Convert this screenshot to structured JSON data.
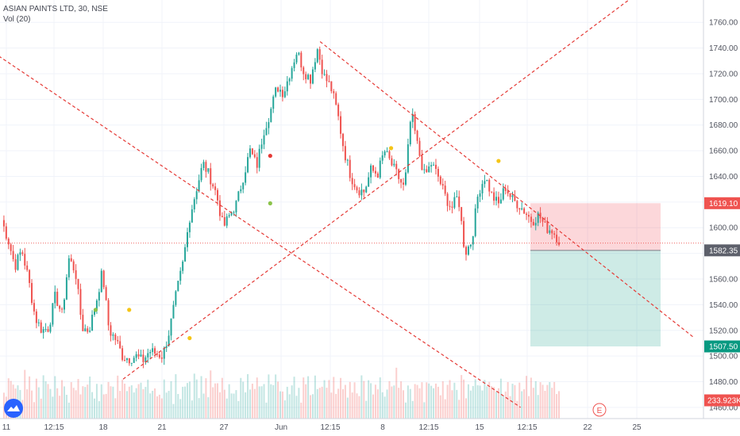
{
  "legend": {
    "symbol": "ASIAN PAINTS LTD, 30, NSE",
    "volume": "Vol (20)"
  },
  "chart_data": {
    "type": "candlestick",
    "ylim": [
      1455,
      1770
    ],
    "y_ticks": [
      1460,
      1480,
      1500,
      1520,
      1540,
      1560,
      1580,
      1600,
      1620,
      1640,
      1660,
      1680,
      1700,
      1720,
      1740,
      1760
    ],
    "y_tick_labels": [
      "1460.00",
      "1480.00",
      "1500.00",
      "1520.00",
      "1540.00",
      "1560.00",
      "1580.00",
      "1600.00",
      "1620.00",
      "1640.00",
      "1660.00",
      "1680.00",
      "1700.00",
      "1720.00",
      "1740.00",
      "1760.00"
    ],
    "x_labels": [
      "11",
      "12:15",
      "18",
      "21",
      "27",
      "Jun",
      "12:15",
      "8",
      "12:15",
      "15",
      "12:15",
      "22",
      "25"
    ],
    "price_path": [
      1606,
      1590,
      1570,
      1583,
      1560,
      1530,
      1520,
      1522,
      1547,
      1532,
      1576,
      1566,
      1522,
      1520,
      1540,
      1566,
      1520,
      1513,
      1500,
      1498,
      1500,
      1496,
      1504,
      1502,
      1500,
      1520,
      1548,
      1572,
      1608,
      1630,
      1650,
      1640,
      1626,
      1600,
      1610,
      1619,
      1640,
      1660,
      1648,
      1675,
      1690,
      1710,
      1705,
      1722,
      1738,
      1722,
      1716,
      1740,
      1718,
      1710,
      1690,
      1660,
      1640,
      1630,
      1628,
      1645,
      1642,
      1660,
      1650,
      1640,
      1630,
      1690,
      1662,
      1640,
      1650,
      1640,
      1625,
      1615,
      1625,
      1580,
      1590,
      1628,
      1640,
      1625,
      1618,
      1632,
      1622,
      1618,
      1612,
      1605,
      1610,
      1600,
      1598,
      1590
    ],
    "vol_seed": [
      0.4,
      0.6,
      0.3,
      0.8,
      0.5,
      0.35,
      0.7,
      0.45,
      0.55,
      0.3,
      0.9,
      0.4,
      0.6,
      0.5,
      0.25,
      0.65,
      0.45,
      0.35,
      0.75,
      0.5
    ],
    "current_price": {
      "value": 1582.35,
      "label": "1582.35",
      "color": "#5d606b"
    },
    "position": {
      "entry": 1582.35,
      "stop": {
        "value": 1619.1,
        "label": "1619.10",
        "color": "#ef5350"
      },
      "target": {
        "value": 1507.5,
        "label": "1507.50",
        "color": "#089981"
      }
    },
    "entry_line": 1588,
    "volume_label": {
      "text": "233.923K",
      "color": "#ef5350"
    },
    "event_marker": "E",
    "markers": [
      {
        "idx": 14,
        "price": 1536,
        "color": "#8bc34a"
      },
      {
        "idx": 19,
        "price": 1536,
        "color": "#f5c518"
      },
      {
        "idx": 28,
        "price": 1514,
        "color": "#f5c518"
      },
      {
        "idx": 40,
        "price": 1619,
        "color": "#8bc34a"
      },
      {
        "idx": 40,
        "price": 1656,
        "color": "#e53935"
      },
      {
        "idx": 58,
        "price": 1662,
        "color": "#f5c518"
      },
      {
        "idx": 74,
        "price": 1652,
        "color": "#f5c518"
      }
    ],
    "trendlines": [
      {
        "from": [
          -0.1,
          1770
        ],
        "to": [
          0.74,
          1460
        ],
        "color": "#e53935",
        "dash": true
      },
      {
        "from": [
          0.175,
          1482
        ],
        "to": [
          0.9,
          1780
        ],
        "color": "#e53935",
        "dash": true
      },
      {
        "from": [
          0.455,
          1745
        ],
        "to": [
          0.985,
          1515
        ],
        "color": "#e53935",
        "dash": true
      }
    ],
    "colors": {
      "up": "#26a69a",
      "down": "#ef5350",
      "grid": "#f0f3fa",
      "axis_text": "#50535e"
    }
  }
}
